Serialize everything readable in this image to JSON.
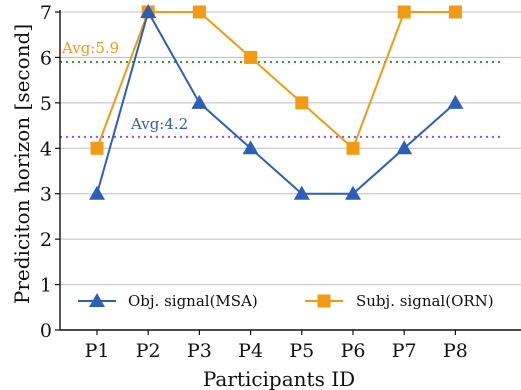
{
  "chart_data": {
    "type": "line",
    "categories": [
      "P1",
      "P2",
      "P3",
      "P4",
      "P5",
      "P6",
      "P7",
      "P8"
    ],
    "xlabel": "Participants ID",
    "ylabel": "Prediciton horizon [second]",
    "ylim": [
      0,
      7
    ],
    "yticks": [
      0,
      1,
      2,
      3,
      4,
      5,
      6,
      7
    ],
    "grid": "horizontal",
    "legend_position": "bottom",
    "series": [
      {
        "name": "Obj. signal(MSA)",
        "values": [
          3,
          7,
          5,
          4,
          3,
          3,
          4,
          5
        ],
        "color": "#2e5fb8",
        "marker": "triangle"
      },
      {
        "name": "Subj. signal(ORN)",
        "values": [
          4,
          7,
          7,
          6,
          5,
          4,
          7,
          7
        ],
        "color": "#f29a13",
        "marker": "square"
      }
    ],
    "reference_lines": [
      {
        "label": "Avg:5.9",
        "value": 5.9,
        "color": "#22aa22",
        "label_color": "#f29a13"
      },
      {
        "label": "Avg:4.2",
        "value": 4.25,
        "color": "#8a4dff",
        "label_color": "#2e5fb8"
      }
    ]
  }
}
